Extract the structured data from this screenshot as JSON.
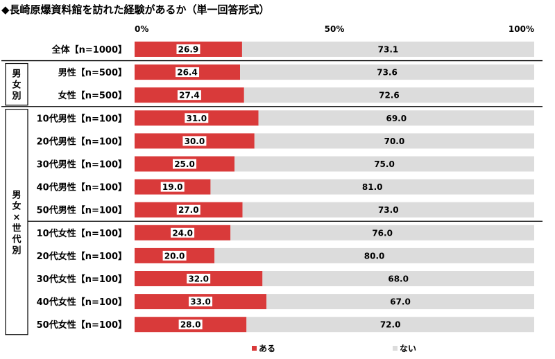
{
  "chart_data": {
    "type": "bar",
    "orientation": "horizontal",
    "stacked": "100%",
    "title": "◆長崎原爆資料館を訪れた経験があるか（単一回答形式）",
    "x_ticks": [
      "0%",
      "50%",
      "100%"
    ],
    "xlim": [
      0,
      100
    ],
    "categories": [
      "全体【n=1000】",
      "男性【n=500】",
      "女性【n=500】",
      "10代男性【n=100】",
      "20代男性【n=100】",
      "30代男性【n=100】",
      "40代男性【n=100】",
      "50代男性【n=100】",
      "10代女性【n=100】",
      "20代女性【n=100】",
      "30代女性【n=100】",
      "40代女性【n=100】",
      "50代女性【n=100】"
    ],
    "series": [
      {
        "name": "ある",
        "color": "#d93a3a",
        "values": [
          26.9,
          26.4,
          27.4,
          31.0,
          30.0,
          25.0,
          19.0,
          27.0,
          24.0,
          20.0,
          32.0,
          33.0,
          28.0
        ],
        "labels": [
          "26.9",
          "26.4",
          "27.4",
          "31.0",
          "30.0",
          "25.0",
          "19.0",
          "27.0",
          "24.0",
          "20.0",
          "32.0",
          "33.0",
          "28.0"
        ]
      },
      {
        "name": "ない",
        "color": "#dcdcdc",
        "values": [
          73.1,
          73.6,
          72.6,
          69.0,
          70.0,
          75.0,
          81.0,
          73.0,
          76.0,
          80.0,
          68.0,
          67.0,
          72.0
        ],
        "labels": [
          "73.1",
          "73.6",
          "72.6",
          "69.0",
          "70.0",
          "75.0",
          "81.0",
          "73.0",
          "76.0",
          "80.0",
          "68.0",
          "67.0",
          "72.0"
        ]
      }
    ],
    "groups": [
      {
        "label": "男女別",
        "rows": [
          1,
          2
        ]
      },
      {
        "label": "男女×世代別",
        "rows": [
          3,
          12
        ]
      }
    ],
    "legend": {
      "position": "bottom"
    },
    "grid": false
  }
}
